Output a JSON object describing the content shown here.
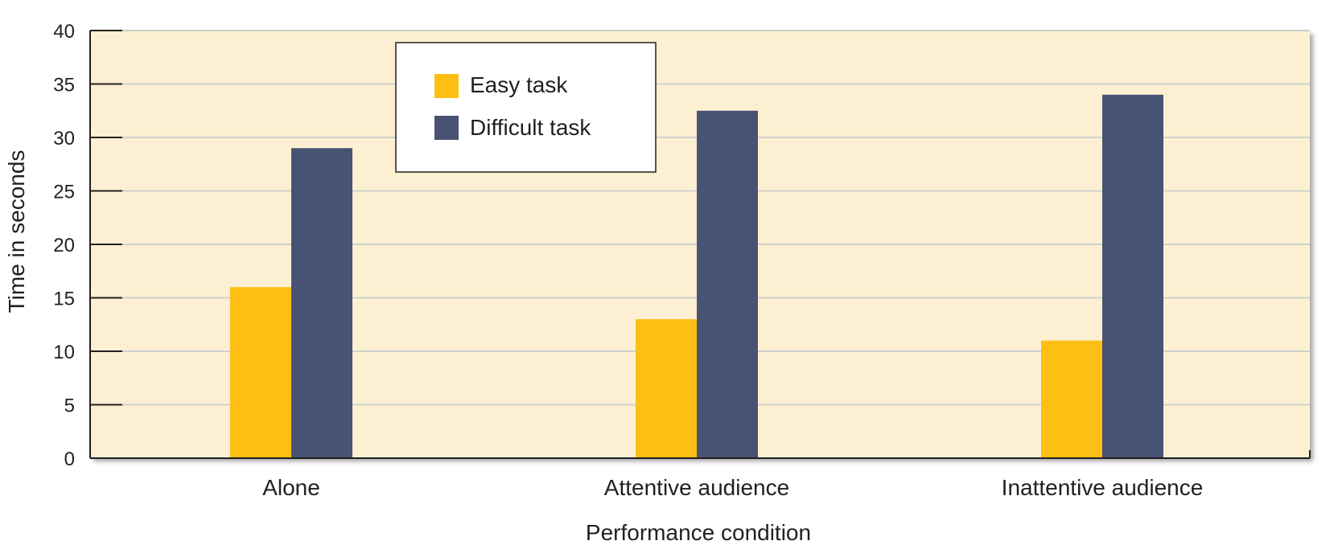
{
  "chart_data": {
    "type": "bar",
    "categories": [
      "Alone",
      "Attentive audience",
      "Inattentive audience"
    ],
    "series": [
      {
        "name": "Easy task",
        "values": [
          16,
          13,
          11
        ],
        "color": "#fdbf14"
      },
      {
        "name": "Difficult task",
        "values": [
          29,
          32.5,
          34
        ],
        "color": "#485373"
      }
    ],
    "xlabel": "Performance condition",
    "ylabel": "Time in seconds",
    "ylim": [
      0,
      40
    ],
    "yticks": [
      0,
      5,
      10,
      15,
      20,
      25,
      30,
      35,
      40
    ],
    "grid": true,
    "legend": "top-left",
    "plot_background": "#fdf0d2"
  }
}
